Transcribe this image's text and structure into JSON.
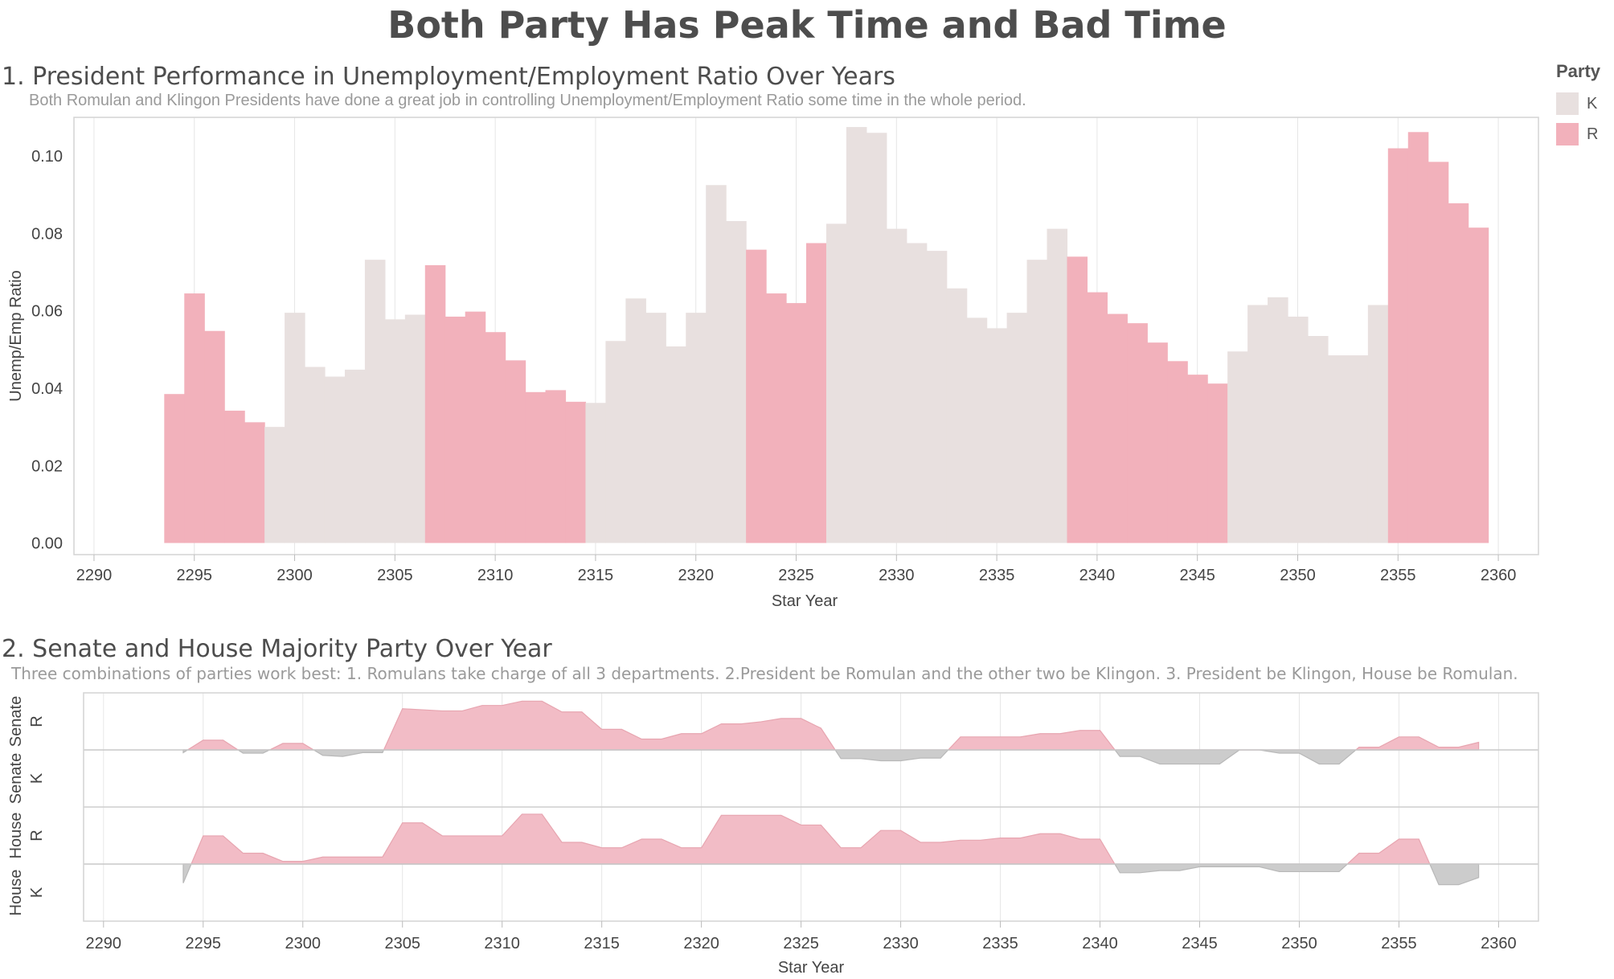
{
  "title": "Both Party Has Peak Time and Bad Time",
  "legend": {
    "title": "Party",
    "items": [
      {
        "label": "K",
        "color": "#e8e0df"
      },
      {
        "label": "R",
        "color": "#f2b1bb"
      }
    ]
  },
  "section1": {
    "title": "1. President Performance in Unemployment/Employment Ratio Over Years",
    "subtitle": "Both Romulan and Klingon Presidents have done a great job in controlling Unemployment/Employment Ratio some time in the whole period."
  },
  "section2": {
    "title": "2. Senate and House Majority Party Over Year",
    "subtitle": "Three combinations of parties work best: 1. Romulans take charge of all 3 departments. 2.President be Romulan and the other two be Klingon. 3. President be Klingon, House be Romulan."
  },
  "chart_data": [
    {
      "type": "bar",
      "xlabel": "Star Year",
      "ylabel": "Unemp/Emp Ratio",
      "xlim": [
        2289,
        2362
      ],
      "ylim": [
        -0.003,
        0.11
      ],
      "x_ticks": [
        2290,
        2295,
        2300,
        2305,
        2310,
        2315,
        2320,
        2325,
        2330,
        2335,
        2340,
        2345,
        2350,
        2355,
        2360
      ],
      "y_ticks": [
        0.0,
        0.02,
        0.04,
        0.06,
        0.08,
        0.1
      ],
      "y_tick_labels": [
        "0.00",
        "0.02",
        "0.04",
        "0.06",
        "0.08",
        "0.10"
      ],
      "grid": "vertical",
      "colors": {
        "K": "#e8e0df",
        "R": "#f2b1bb"
      },
      "bars": [
        {
          "year": 2294,
          "value": 0.0385,
          "party": "R"
        },
        {
          "year": 2295,
          "value": 0.0645,
          "party": "R"
        },
        {
          "year": 2296,
          "value": 0.0548,
          "party": "R"
        },
        {
          "year": 2297,
          "value": 0.0342,
          "party": "R"
        },
        {
          "year": 2298,
          "value": 0.0312,
          "party": "R"
        },
        {
          "year": 2299,
          "value": 0.03,
          "party": "K"
        },
        {
          "year": 2300,
          "value": 0.0595,
          "party": "K"
        },
        {
          "year": 2301,
          "value": 0.0455,
          "party": "K"
        },
        {
          "year": 2302,
          "value": 0.043,
          "party": "K"
        },
        {
          "year": 2303,
          "value": 0.0448,
          "party": "K"
        },
        {
          "year": 2304,
          "value": 0.0732,
          "party": "K"
        },
        {
          "year": 2305,
          "value": 0.0578,
          "party": "K"
        },
        {
          "year": 2306,
          "value": 0.059,
          "party": "K"
        },
        {
          "year": 2307,
          "value": 0.0718,
          "party": "R"
        },
        {
          "year": 2308,
          "value": 0.0585,
          "party": "R"
        },
        {
          "year": 2309,
          "value": 0.0598,
          "party": "R"
        },
        {
          "year": 2310,
          "value": 0.0545,
          "party": "R"
        },
        {
          "year": 2311,
          "value": 0.0472,
          "party": "R"
        },
        {
          "year": 2312,
          "value": 0.039,
          "party": "R"
        },
        {
          "year": 2313,
          "value": 0.0395,
          "party": "R"
        },
        {
          "year": 2314,
          "value": 0.0365,
          "party": "R"
        },
        {
          "year": 2315,
          "value": 0.0362,
          "party": "K"
        },
        {
          "year": 2316,
          "value": 0.0522,
          "party": "K"
        },
        {
          "year": 2317,
          "value": 0.0632,
          "party": "K"
        },
        {
          "year": 2318,
          "value": 0.0595,
          "party": "K"
        },
        {
          "year": 2319,
          "value": 0.0508,
          "party": "K"
        },
        {
          "year": 2320,
          "value": 0.0595,
          "party": "K"
        },
        {
          "year": 2321,
          "value": 0.0925,
          "party": "K"
        },
        {
          "year": 2322,
          "value": 0.0832,
          "party": "K"
        },
        {
          "year": 2323,
          "value": 0.0758,
          "party": "R"
        },
        {
          "year": 2324,
          "value": 0.0645,
          "party": "R"
        },
        {
          "year": 2325,
          "value": 0.062,
          "party": "R"
        },
        {
          "year": 2326,
          "value": 0.0775,
          "party": "R"
        },
        {
          "year": 2327,
          "value": 0.0825,
          "party": "K"
        },
        {
          "year": 2328,
          "value": 0.1075,
          "party": "K"
        },
        {
          "year": 2329,
          "value": 0.106,
          "party": "K"
        },
        {
          "year": 2330,
          "value": 0.0812,
          "party": "K"
        },
        {
          "year": 2331,
          "value": 0.0775,
          "party": "K"
        },
        {
          "year": 2332,
          "value": 0.0755,
          "party": "K"
        },
        {
          "year": 2333,
          "value": 0.0658,
          "party": "K"
        },
        {
          "year": 2334,
          "value": 0.0582,
          "party": "K"
        },
        {
          "year": 2335,
          "value": 0.0555,
          "party": "K"
        },
        {
          "year": 2336,
          "value": 0.0595,
          "party": "K"
        },
        {
          "year": 2337,
          "value": 0.0732,
          "party": "K"
        },
        {
          "year": 2338,
          "value": 0.0812,
          "party": "K"
        },
        {
          "year": 2339,
          "value": 0.074,
          "party": "R"
        },
        {
          "year": 2340,
          "value": 0.0648,
          "party": "R"
        },
        {
          "year": 2341,
          "value": 0.0592,
          "party": "R"
        },
        {
          "year": 2342,
          "value": 0.0568,
          "party": "R"
        },
        {
          "year": 2343,
          "value": 0.0518,
          "party": "R"
        },
        {
          "year": 2344,
          "value": 0.047,
          "party": "R"
        },
        {
          "year": 2345,
          "value": 0.0435,
          "party": "R"
        },
        {
          "year": 2346,
          "value": 0.0412,
          "party": "R"
        },
        {
          "year": 2347,
          "value": 0.0495,
          "party": "K"
        },
        {
          "year": 2348,
          "value": 0.0615,
          "party": "K"
        },
        {
          "year": 2349,
          "value": 0.0635,
          "party": "K"
        },
        {
          "year": 2350,
          "value": 0.0585,
          "party": "K"
        },
        {
          "year": 2351,
          "value": 0.0535,
          "party": "K"
        },
        {
          "year": 2352,
          "value": 0.0485,
          "party": "K"
        },
        {
          "year": 2353,
          "value": 0.0485,
          "party": "K"
        },
        {
          "year": 2354,
          "value": 0.0615,
          "party": "K"
        },
        {
          "year": 2355,
          "value": 0.102,
          "party": "R"
        },
        {
          "year": 2356,
          "value": 0.1062,
          "party": "R"
        },
        {
          "year": 2357,
          "value": 0.0985,
          "party": "R"
        },
        {
          "year": 2358,
          "value": 0.0878,
          "party": "R"
        },
        {
          "year": 2359,
          "value": 0.0815,
          "party": "R"
        }
      ]
    },
    {
      "type": "area",
      "xlabel": "Star Year",
      "xlim": [
        2289,
        2362
      ],
      "x_ticks": [
        2290,
        2295,
        2300,
        2305,
        2310,
        2315,
        2320,
        2325,
        2330,
        2335,
        2340,
        2345,
        2350,
        2355,
        2360
      ],
      "grid": "vertical",
      "colors": {
        "R": "#f2bcc6",
        "K": "#cccccc",
        "R_line": "#e7a5b0",
        "K_line": "#b8b8b8"
      },
      "rows": [
        {
          "label": "Senate",
          "top_label": "R",
          "bottom_label": "K",
          "ylim": [
            -1,
            1
          ],
          "x": [
            2294,
            2295,
            2296,
            2297,
            2298,
            2299,
            2300,
            2301,
            2302,
            2303,
            2304,
            2305,
            2306,
            2307,
            2308,
            2309,
            2310,
            2311,
            2312,
            2313,
            2314,
            2315,
            2316,
            2317,
            2318,
            2319,
            2320,
            2321,
            2322,
            2323,
            2324,
            2325,
            2326,
            2327,
            2328,
            2329,
            2330,
            2331,
            2332,
            2333,
            2334,
            2335,
            2336,
            2337,
            2338,
            2339,
            2340,
            2341,
            2342,
            2343,
            2344,
            2345,
            2346,
            2347,
            2348,
            2349,
            2350,
            2351,
            2352,
            2353,
            2354,
            2355,
            2356,
            2357,
            2358,
            2359
          ],
          "values": [
            -0.05,
            0.18,
            0.18,
            -0.06,
            -0.06,
            0.12,
            0.12,
            -0.1,
            -0.12,
            -0.05,
            -0.05,
            0.76,
            0.74,
            0.72,
            0.72,
            0.82,
            0.82,
            0.9,
            0.9,
            0.7,
            0.7,
            0.38,
            0.38,
            0.2,
            0.2,
            0.3,
            0.3,
            0.48,
            0.48,
            0.52,
            0.58,
            0.58,
            0.4,
            -0.16,
            -0.16,
            -0.2,
            -0.2,
            -0.15,
            -0.15,
            0.24,
            0.24,
            0.24,
            0.24,
            0.3,
            0.3,
            0.36,
            0.36,
            -0.12,
            -0.12,
            -0.26,
            -0.26,
            -0.26,
            -0.26,
            0.0,
            0.0,
            -0.06,
            -0.06,
            -0.26,
            -0.26,
            0.05,
            0.05,
            0.24,
            0.24,
            0.05,
            0.05,
            0.14
          ]
        },
        {
          "label": "House",
          "top_label": "R",
          "bottom_label": "K",
          "ylim": [
            -1,
            1
          ],
          "x": [
            2294,
            2295,
            2296,
            2297,
            2298,
            2299,
            2300,
            2301,
            2302,
            2303,
            2304,
            2305,
            2306,
            2307,
            2308,
            2309,
            2310,
            2311,
            2312,
            2313,
            2314,
            2315,
            2316,
            2317,
            2318,
            2319,
            2320,
            2321,
            2322,
            2323,
            2324,
            2325,
            2326,
            2327,
            2328,
            2329,
            2330,
            2331,
            2332,
            2333,
            2334,
            2335,
            2336,
            2337,
            2338,
            2339,
            2340,
            2341,
            2342,
            2343,
            2344,
            2345,
            2346,
            2347,
            2348,
            2349,
            2350,
            2351,
            2352,
            2353,
            2354,
            2355,
            2356,
            2357,
            2358,
            2359
          ],
          "values": [
            -0.35,
            0.52,
            0.52,
            0.2,
            0.2,
            0.05,
            0.05,
            0.13,
            0.13,
            0.13,
            0.13,
            0.76,
            0.76,
            0.52,
            0.52,
            0.52,
            0.52,
            0.92,
            0.92,
            0.4,
            0.4,
            0.3,
            0.3,
            0.46,
            0.46,
            0.3,
            0.3,
            0.9,
            0.9,
            0.9,
            0.9,
            0.72,
            0.72,
            0.3,
            0.3,
            0.62,
            0.62,
            0.4,
            0.4,
            0.44,
            0.44,
            0.48,
            0.48,
            0.56,
            0.56,
            0.46,
            0.46,
            -0.16,
            -0.16,
            -0.12,
            -0.12,
            -0.05,
            -0.05,
            -0.05,
            -0.05,
            -0.14,
            -0.14,
            -0.14,
            -0.14,
            0.2,
            0.2,
            0.46,
            0.46,
            -0.38,
            -0.38,
            -0.25
          ]
        }
      ]
    }
  ]
}
